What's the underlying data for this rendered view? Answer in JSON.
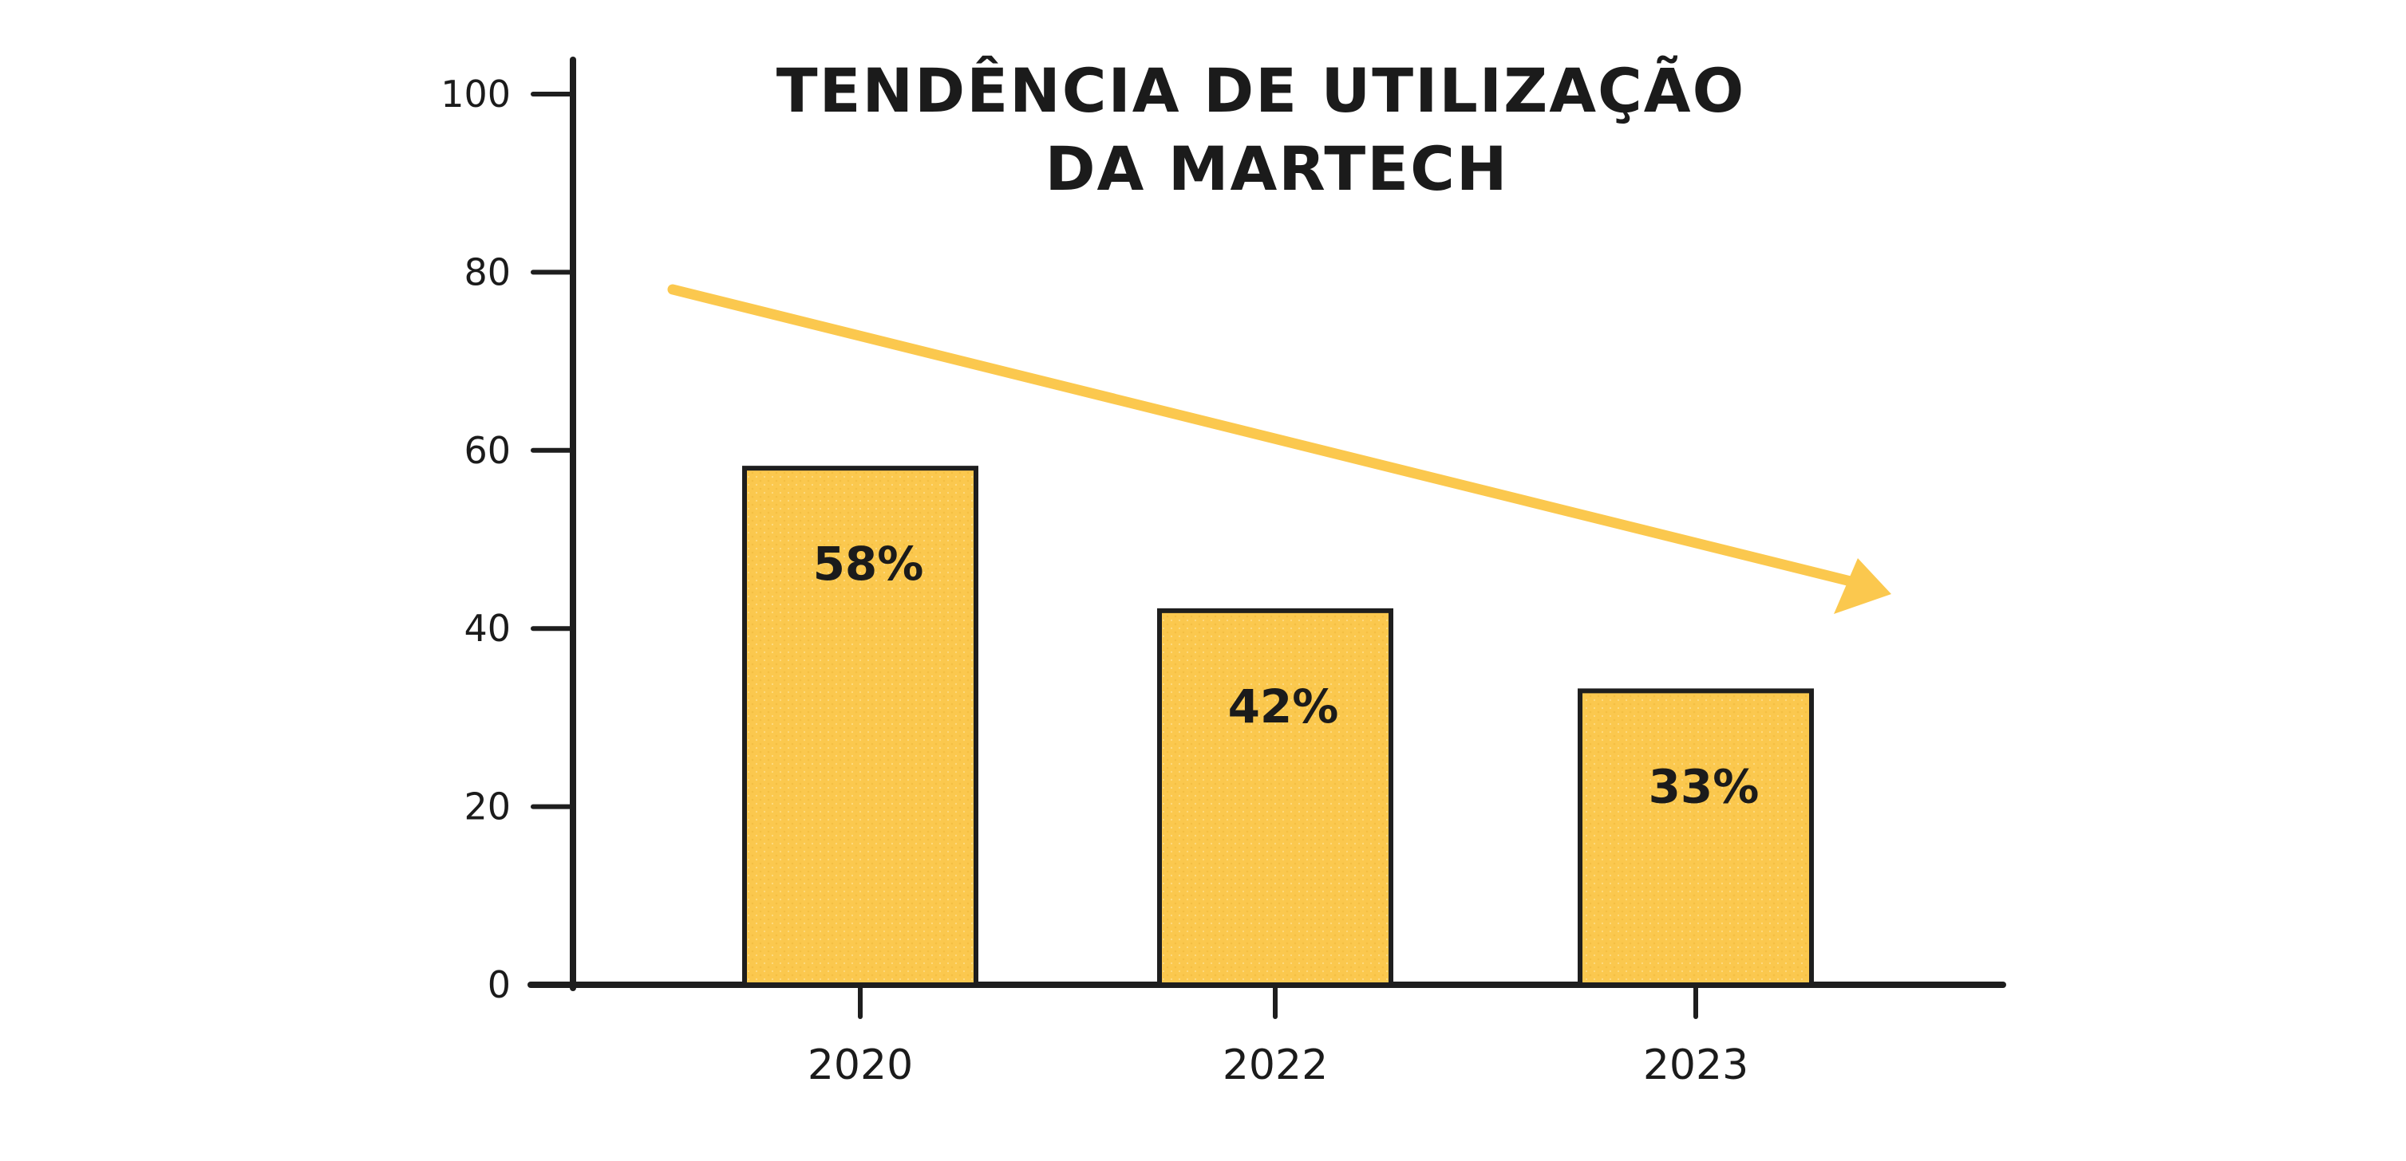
{
  "chart_data": {
    "type": "bar",
    "title": [
      "TENDÊNCIA DE UTILIZAÇÃO",
      "DA MARTECH"
    ],
    "categories": [
      "2020",
      "2022",
      "2023"
    ],
    "values": [
      58,
      42,
      33
    ],
    "value_labels": [
      "58%",
      "42%",
      "33%"
    ],
    "xlabel": "",
    "ylabel": "",
    "ylim": [
      0,
      100
    ],
    "yticks": [
      0,
      20,
      40,
      60,
      80,
      100
    ],
    "grid": false,
    "legend": "none",
    "trend_arrow": "downward",
    "colors": {
      "bar": "#fbc84e",
      "bar_outline": "#1e1e1e",
      "axis": "#1e1e1e",
      "arrow": "#fbc84e",
      "text": "#1b1b1b"
    }
  }
}
